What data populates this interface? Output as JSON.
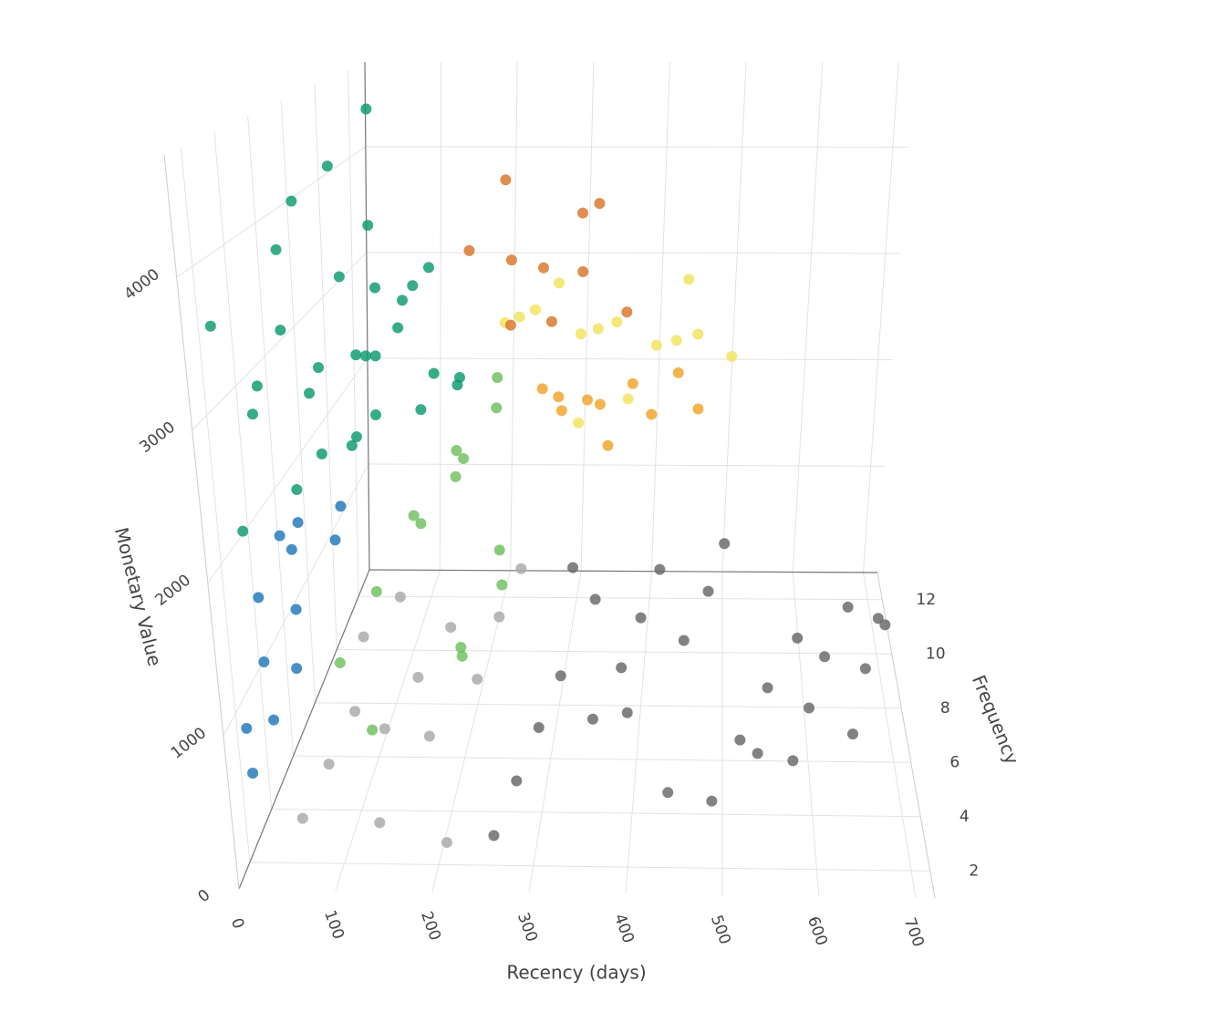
{
  "chart_data": {
    "type": "scatter3d",
    "xlabel": "Recency (days)",
    "ylabel": "Frequency",
    "zlabel": "Monetary Value",
    "xlim": [
      0,
      720
    ],
    "xticks": [
      0,
      100,
      200,
      300,
      400,
      500,
      600,
      700
    ],
    "ylim": [
      1,
      13
    ],
    "yticks": [
      2,
      4,
      6,
      8,
      10,
      12
    ],
    "zlim": [
      0,
      4800
    ],
    "zticks": [
      0,
      1000,
      2000,
      3000,
      4000
    ],
    "grid": true,
    "series": [
      {
        "color": "#1f78b8",
        "x": [
          10,
          20,
          5,
          30,
          15,
          25,
          8,
          35,
          12,
          40,
          18,
          28
        ],
        "y": [
          2,
          3,
          4,
          5,
          6,
          3,
          7,
          8,
          2,
          4,
          5,
          9
        ],
        "z": [
          900,
          1200,
          1500,
          1700,
          1100,
          800,
          1600,
          1300,
          600,
          1000,
          1800,
          1400
        ]
      },
      {
        "color": "#0b9a6e",
        "x": [
          60,
          5,
          20,
          40,
          80,
          100,
          15,
          30,
          50,
          70,
          90,
          120,
          10,
          25,
          45,
          65,
          85,
          110,
          35,
          55,
          75,
          95,
          130,
          140,
          12,
          22,
          42,
          62,
          150,
          30
        ],
        "y": [
          10,
          8,
          6,
          11,
          9,
          12,
          4,
          7,
          10,
          5,
          8,
          11,
          3,
          6,
          9,
          12,
          7,
          10,
          5,
          8,
          11,
          6,
          9,
          12,
          2,
          4,
          7,
          10,
          11,
          9
        ],
        "z": [
          4600,
          4000,
          3800,
          3500,
          3200,
          3000,
          2800,
          2600,
          2500,
          2400,
          2300,
          2200,
          2100,
          2000,
          1900,
          2700,
          2900,
          3100,
          3300,
          3400,
          2600,
          2400,
          2200,
          2000,
          3600,
          3000,
          2800,
          2500,
          2100,
          4200
        ]
      },
      {
        "color": "#6cc05e",
        "x": [
          100,
          120,
          150,
          180,
          200,
          220,
          250,
          130,
          160,
          190,
          210,
          240,
          140,
          170
        ],
        "y": [
          3,
          5,
          7,
          9,
          11,
          4,
          6,
          8,
          10,
          12,
          5,
          7,
          2,
          9
        ],
        "z": [
          1200,
          1400,
          1600,
          1800,
          1900,
          1100,
          1300,
          1500,
          1700,
          2000,
          1000,
          1400,
          900,
          1650
        ]
      },
      {
        "color": "#a8a8a8",
        "x": [
          60,
          80,
          100,
          120,
          150,
          180,
          200,
          220,
          240,
          90,
          130,
          170,
          210,
          110
        ],
        "y": [
          2,
          3,
          4,
          5,
          6,
          7,
          8,
          9,
          10,
          6,
          3,
          5,
          2,
          8
        ],
        "z": [
          300,
          500,
          700,
          400,
          600,
          800,
          200,
          500,
          700,
          900,
          100,
          350,
          150,
          850
        ]
      },
      {
        "color": "#666666",
        "x": [
          260,
          280,
          300,
          320,
          350,
          380,
          400,
          420,
          450,
          480,
          500,
          520,
          550,
          580,
          600,
          620,
          650,
          680,
          700,
          300,
          340,
          390,
          440,
          490,
          540,
          590,
          640,
          690
        ],
        "y": [
          2,
          3,
          4,
          5,
          6,
          7,
          8,
          9,
          10,
          11,
          12,
          3,
          4,
          5,
          6,
          7,
          8,
          9,
          10,
          11,
          9,
          6,
          4,
          2,
          5,
          8,
          3,
          7
        ],
        "z": [
          200,
          400,
          600,
          800,
          300,
          500,
          700,
          900,
          100,
          300,
          500,
          700,
          900,
          200,
          400,
          600,
          800,
          100,
          300,
          500,
          650,
          350,
          150,
          450,
          250,
          550,
          750,
          850
        ]
      },
      {
        "color": "#f2e35a",
        "x": [
          200,
          230,
          260,
          300,
          330,
          360,
          400,
          430,
          460,
          500,
          320,
          380,
          280,
          440
        ],
        "y": [
          12,
          11,
          10,
          12,
          11,
          10,
          12,
          11,
          10,
          12,
          9,
          9,
          11,
          12
        ],
        "z": [
          2500,
          2700,
          2900,
          2400,
          2600,
          2800,
          2300,
          2500,
          2700,
          2200,
          2100,
          2300,
          3000,
          2900
        ]
      },
      {
        "color": "#f0a42a",
        "x": [
          250,
          280,
          310,
          340,
          370,
          400,
          430,
          460,
          300,
          350
        ],
        "y": [
          12,
          11,
          12,
          10,
          12,
          11,
          12,
          11,
          9,
          10
        ],
        "z": [
          1900,
          2000,
          1800,
          2100,
          1950,
          1850,
          2050,
          1900,
          2200,
          1750
        ]
      },
      {
        "color": "#d8752a",
        "x": [
          180,
          200,
          220,
          250,
          280,
          300,
          330,
          360,
          240,
          310
        ],
        "y": [
          10,
          12,
          11,
          12,
          10,
          12,
          11,
          12,
          9,
          11
        ],
        "z": [
          3400,
          3800,
          3200,
          3000,
          2800,
          3500,
          3700,
          2600,
          2900,
          3100
        ]
      }
    ]
  }
}
